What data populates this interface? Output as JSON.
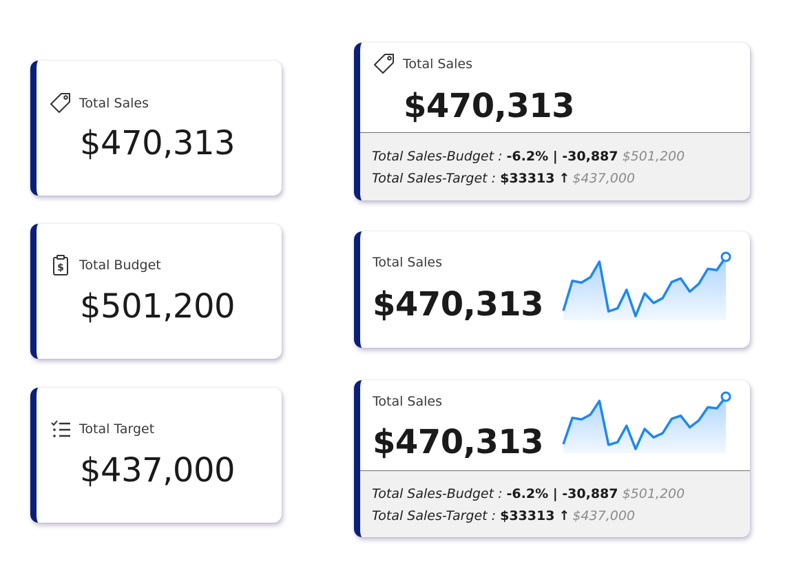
{
  "cards_left": [
    {
      "title": "Total Sales",
      "value": "$470,313",
      "icon": "price-tag-icon"
    },
    {
      "title": "Total Budget",
      "value": "$501,200",
      "icon": "clipboard-dollar-icon"
    },
    {
      "title": "Total Target",
      "value": "$437,000",
      "icon": "checklist-icon"
    }
  ],
  "card_variance": {
    "title": "Total Sales",
    "value": "$470,313",
    "icon": "price-tag-icon",
    "budget": {
      "label": "Total Sales-Budget : ",
      "pct": "-6.2% | ",
      "diff": "-30,887",
      "ref": "$501,200"
    },
    "target": {
      "label": "Total Sales-Target : ",
      "diff": "$33313",
      "arrow": "↑",
      "ref": "$437,000"
    }
  },
  "card_spark": {
    "title": "Total Sales",
    "value": "$470,313"
  },
  "card_spark_variance": {
    "title": "Total Sales",
    "value": "$470,313",
    "budget": {
      "label": "Total Sales-Budget : ",
      "pct": "-6.2% | ",
      "diff": "-30,887",
      "ref": "$501,200"
    },
    "target": {
      "label": "Total Sales-Target : ",
      "diff": "$33313",
      "arrow": "↑",
      "ref": "$437,000"
    }
  },
  "colors": {
    "accent_bar": "#0b1f7a",
    "spark_line": "#1e88f0",
    "spark_fill": "#a9d2ff"
  },
  "chart_data": {
    "type": "area",
    "values": [
      4,
      9,
      8.7,
      9.6,
      12.2,
      3.9,
      4.4,
      7.5,
      3.1,
      6.9,
      5.3,
      6.1,
      8.8,
      9.4,
      7.2,
      8.5,
      11,
      10.8,
      13
    ]
  }
}
